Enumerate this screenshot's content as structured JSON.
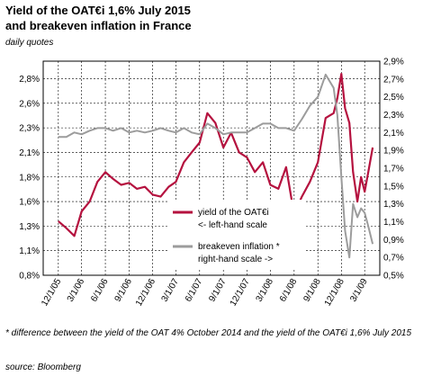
{
  "header": {
    "title_line1": "Yield of the OAT€i 1,6% July 2015",
    "title_line2": "and breakeven inflation in France",
    "subtitle": "daily quotes"
  },
  "footnote": "* difference between the yield of the OAT 4% October 2014 and the yield of the OAT€i 1,6% July 2015",
  "source": "source: Bloomberg",
  "chart_data": {
    "type": "line",
    "x_tick_labels": [
      "12/1/05",
      "3/1/06",
      "6/1/06",
      "9/1/06",
      "12/1/06",
      "3/1/07",
      "6/1/07",
      "9/1/07",
      "12/1/07",
      "3/1/08",
      "6/1/08",
      "9/1/08",
      "12/1/08",
      "3/1/09"
    ],
    "left_axis": {
      "labels": [
        "0,8%",
        "1,1%",
        "1,3%",
        "1,6%",
        "1,8%",
        "2,1%",
        "2,3%",
        "2,6%",
        "2,8%"
      ],
      "min": 0.8,
      "max": 2.8
    },
    "right_axis": {
      "labels": [
        "0,5%",
        "0,7%",
        "0,9%",
        "1,1%",
        "1,3%",
        "1,5%",
        "1,7%",
        "1,9%",
        "2,1%",
        "2,3%",
        "2,5%",
        "2,7%",
        "2,9%"
      ],
      "min": 0.5,
      "max": 2.9
    },
    "grid": true,
    "legend_placement": "center-right",
    "series": [
      {
        "name_line1": "yield of the OAT€i",
        "name_line2": "<- left-hand scale",
        "axis": "left",
        "color": "#b5123f",
        "x": [
          "12/1/05",
          "1/1/06",
          "2/1/06",
          "3/1/06",
          "4/1/06",
          "5/1/06",
          "6/1/06",
          "7/1/06",
          "8/1/06",
          "9/1/06",
          "10/1/06",
          "11/1/06",
          "12/1/06",
          "1/1/07",
          "2/1/07",
          "3/1/07",
          "4/1/07",
          "5/1/07",
          "6/1/07",
          "7/1/07",
          "8/1/07",
          "9/1/07",
          "10/1/07",
          "11/1/07",
          "12/1/07",
          "1/1/08",
          "2/1/08",
          "3/1/08",
          "4/1/08",
          "5/1/08",
          "6/1/08",
          "7/1/08",
          "8/1/08",
          "9/1/08",
          "10/1/08",
          "11/1/08",
          "11/15/08",
          "12/1/08",
          "12/15/08",
          "1/1/09",
          "1/15/09",
          "2/1/09",
          "2/15/09",
          "3/1/09",
          "3/15/09",
          "4/1/09"
        ],
        "y": [
          1.35,
          1.28,
          1.2,
          1.45,
          1.55,
          1.75,
          1.85,
          1.78,
          1.72,
          1.74,
          1.68,
          1.7,
          1.62,
          1.6,
          1.7,
          1.75,
          1.95,
          2.05,
          2.15,
          2.45,
          2.35,
          2.1,
          2.25,
          2.05,
          2.0,
          1.85,
          1.95,
          1.72,
          1.68,
          1.9,
          1.42,
          1.6,
          1.75,
          1.95,
          2.4,
          2.45,
          2.6,
          2.85,
          2.5,
          2.35,
          1.85,
          1.55,
          1.8,
          1.65,
          1.85,
          2.1
        ]
      },
      {
        "name_line1": "breakeven inflation *",
        "name_line2": "right-hand scale ->",
        "axis": "right",
        "color": "#9c9c9c",
        "x": [
          "12/1/05",
          "1/1/06",
          "2/1/06",
          "3/1/06",
          "4/1/06",
          "5/1/06",
          "6/1/06",
          "7/1/06",
          "8/1/06",
          "9/1/06",
          "10/1/06",
          "11/1/06",
          "12/1/06",
          "1/1/07",
          "2/1/07",
          "3/1/07",
          "4/1/07",
          "5/1/07",
          "6/1/07",
          "7/1/07",
          "8/1/07",
          "9/1/07",
          "10/1/07",
          "11/1/07",
          "12/1/07",
          "1/1/08",
          "2/1/08",
          "3/1/08",
          "4/1/08",
          "5/1/08",
          "6/1/08",
          "7/1/08",
          "8/1/08",
          "9/1/08",
          "10/1/08",
          "11/1/08",
          "11/15/08",
          "12/1/08",
          "12/15/08",
          "1/1/09",
          "1/15/09",
          "2/1/09",
          "2/15/09",
          "3/1/09",
          "3/15/09",
          "4/1/09"
        ],
        "y": [
          2.05,
          2.05,
          2.1,
          2.08,
          2.12,
          2.15,
          2.15,
          2.12,
          2.15,
          2.1,
          2.12,
          2.1,
          2.12,
          2.15,
          2.12,
          2.1,
          2.15,
          2.1,
          2.08,
          2.2,
          2.15,
          2.08,
          2.1,
          2.1,
          2.1,
          2.15,
          2.2,
          2.2,
          2.15,
          2.15,
          2.12,
          2.25,
          2.4,
          2.5,
          2.75,
          2.6,
          2.3,
          1.6,
          1.0,
          0.7,
          1.3,
          1.15,
          1.25,
          1.2,
          1.05,
          0.85
        ]
      }
    ]
  }
}
